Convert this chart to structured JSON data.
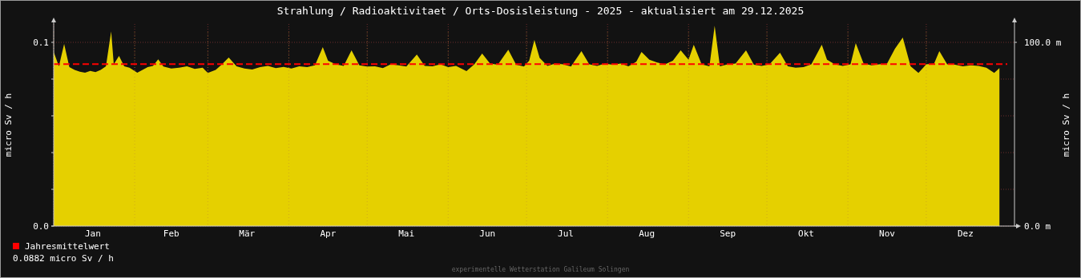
{
  "chart_data": {
    "type": "area",
    "title": "Strahlung / Radioaktivitaet / Orts-Dosisleistung - 2025 - aktualisiert am 29.12.2025",
    "ylabel": "micro Sv / h",
    "y2label": "micro Sv / h",
    "xlim": [
      "2025-01-01",
      "2026-01-01"
    ],
    "xticks": [
      {
        "value": "2025-01-01",
        "label": null
      },
      {
        "value": "2025-01-16",
        "label": "Jan"
      },
      {
        "value": "2025-02-01",
        "label": null
      },
      {
        "value": "2025-02-15",
        "label": "Feb"
      },
      {
        "value": "2025-03-01",
        "label": null
      },
      {
        "value": "2025-03-16",
        "label": "Mär"
      },
      {
        "value": "2025-04-01",
        "label": null
      },
      {
        "value": "2025-04-16",
        "label": "Apr"
      },
      {
        "value": "2025-05-01",
        "label": null
      },
      {
        "value": "2025-05-16",
        "label": "Mai"
      },
      {
        "value": "2025-06-01",
        "label": null
      },
      {
        "value": "2025-06-16",
        "label": "Jun"
      },
      {
        "value": "2025-07-01",
        "label": null
      },
      {
        "value": "2025-07-16",
        "label": "Jul"
      },
      {
        "value": "2025-08-01",
        "label": null
      },
      {
        "value": "2025-08-16",
        "label": "Aug"
      },
      {
        "value": "2025-09-01",
        "label": null
      },
      {
        "value": "2025-09-16",
        "label": "Sep"
      },
      {
        "value": "2025-10-01",
        "label": null
      },
      {
        "value": "2025-10-16",
        "label": "Okt"
      },
      {
        "value": "2025-11-01",
        "label": null
      },
      {
        "value": "2025-11-16",
        "label": "Nov"
      },
      {
        "value": "2025-12-01",
        "label": null
      },
      {
        "value": "2025-12-16",
        "label": "Dez"
      }
    ],
    "ylim": [
      0,
      0.11
    ],
    "yticks": [
      {
        "value": 0,
        "label": "0.0"
      },
      {
        "value": 0.02,
        "label": null
      },
      {
        "value": 0.04,
        "label": null
      },
      {
        "value": 0.06,
        "label": null
      },
      {
        "value": 0.08,
        "label": null
      },
      0.1
    ],
    "y2lim": [
      0,
      110
    ],
    "y2ticks": [
      {
        "value": 0,
        "label": "0.0 m"
      },
      {
        "value": 100,
        "label": "100.0 m"
      }
    ],
    "grid": true,
    "legend": "bottom left",
    "series": [
      {
        "color": "#e5d000",
        "x": [
          "2025-01-01",
          "2025-01-03",
          "2025-01-05",
          "2025-01-07",
          "2025-01-09",
          "2025-01-11",
          "2025-01-13",
          "2025-01-15",
          "2025-01-17",
          "2025-01-19",
          "2025-01-21",
          "2025-01-23",
          "2025-01-24",
          "2025-01-26",
          "2025-01-28",
          "2025-01-30",
          "2025-02-02",
          "2025-02-04",
          "2025-02-06",
          "2025-02-08",
          "2025-02-10",
          "2025-02-12",
          "2025-02-15",
          "2025-02-18",
          "2025-02-21",
          "2025-02-24",
          "2025-02-27",
          "2025-03-01",
          "2025-03-04",
          "2025-03-06",
          "2025-03-09",
          "2025-03-12",
          "2025-03-15",
          "2025-03-18",
          "2025-03-21",
          "2025-03-24",
          "2025-03-27",
          "2025-03-30",
          "2025-04-02",
          "2025-04-05",
          "2025-04-08",
          "2025-04-11",
          "2025-04-14",
          "2025-04-16",
          "2025-04-19",
          "2025-04-22",
          "2025-04-25",
          "2025-04-28",
          "2025-05-01",
          "2025-05-04",
          "2025-05-07",
          "2025-05-10",
          "2025-05-13",
          "2025-05-16",
          "2025-05-20",
          "2025-05-23",
          "2025-05-26",
          "2025-05-29",
          "2025-06-01",
          "2025-06-04",
          "2025-06-08",
          "2025-06-11",
          "2025-06-14",
          "2025-06-17",
          "2025-06-20",
          "2025-06-24",
          "2025-06-27",
          "2025-06-30",
          "2025-07-02",
          "2025-07-04",
          "2025-07-06",
          "2025-07-09",
          "2025-07-12",
          "2025-07-15",
          "2025-07-18",
          "2025-07-22",
          "2025-07-25",
          "2025-07-28",
          "2025-07-31",
          "2025-08-03",
          "2025-08-06",
          "2025-08-09",
          "2025-08-12",
          "2025-08-14",
          "2025-08-17",
          "2025-08-20",
          "2025-08-23",
          "2025-08-26",
          "2025-08-29",
          "2025-09-01",
          "2025-09-03",
          "2025-09-06",
          "2025-09-09",
          "2025-09-11",
          "2025-09-13",
          "2025-09-16",
          "2025-09-19",
          "2025-09-23",
          "2025-09-26",
          "2025-09-29",
          "2025-10-02",
          "2025-10-06",
          "2025-10-09",
          "2025-10-12",
          "2025-10-15",
          "2025-10-18",
          "2025-10-22",
          "2025-10-24",
          "2025-10-27",
          "2025-10-30",
          "2025-11-02",
          "2025-11-04",
          "2025-11-07",
          "2025-11-10",
          "2025-11-13",
          "2025-11-16",
          "2025-11-19",
          "2025-11-22",
          "2025-11-25",
          "2025-11-28",
          "2025-12-01",
          "2025-12-04",
          "2025-12-06",
          "2025-12-09",
          "2025-12-12",
          "2025-12-15",
          "2025-12-18",
          "2025-12-21",
          "2025-12-24",
          "2025-12-27",
          "2025-12-29"
        ],
        "values": [
          0.0948,
          0.087,
          0.0991,
          0.0865,
          0.085,
          0.084,
          0.0835,
          0.0845,
          0.0838,
          0.085,
          0.087,
          0.106,
          0.088,
          0.0926,
          0.087,
          0.0862,
          0.0835,
          0.085,
          0.0865,
          0.0872,
          0.0908,
          0.0868,
          0.0858,
          0.0862,
          0.087,
          0.0855,
          0.0862,
          0.0834,
          0.085,
          0.0875,
          0.0917,
          0.087,
          0.0858,
          0.0852,
          0.0865,
          0.0872,
          0.086,
          0.0866,
          0.0858,
          0.087,
          0.0865,
          0.0875,
          0.0974,
          0.09,
          0.088,
          0.0872,
          0.0956,
          0.0875,
          0.0868,
          0.087,
          0.086,
          0.088,
          0.0875,
          0.0868,
          0.0934,
          0.0872,
          0.087,
          0.088,
          0.0865,
          0.0872,
          0.0843,
          0.088,
          0.0939,
          0.0885,
          0.0878,
          0.096,
          0.0878,
          0.0868,
          0.09,
          0.1013,
          0.0915,
          0.0872,
          0.0885,
          0.088,
          0.0868,
          0.0952,
          0.088,
          0.0872,
          0.0885,
          0.0878,
          0.0885,
          0.087,
          0.0895,
          0.0948,
          0.0905,
          0.089,
          0.088,
          0.09,
          0.0956,
          0.0905,
          0.0987,
          0.088,
          0.087,
          0.109,
          0.087,
          0.088,
          0.0885,
          0.0956,
          0.0878,
          0.0872,
          0.088,
          0.0943,
          0.087,
          0.0862,
          0.0865,
          0.088,
          0.0987,
          0.0905,
          0.088,
          0.0872,
          0.088,
          0.0996,
          0.0885,
          0.0875,
          0.088,
          0.0885,
          0.0965,
          0.1026,
          0.087,
          0.0834,
          0.088,
          0.0885,
          0.0952,
          0.088,
          0.0878,
          0.087,
          0.0875,
          0.0872,
          0.0862,
          0.0834,
          0.086
        ]
      }
    ],
    "ref_lines": [
      {
        "axis": "y",
        "value": 0.0882,
        "label": "Jahresmittelwert",
        "color": "#ff0000",
        "line_style": "dashed"
      }
    ],
    "annotations": [
      "0.0882 micro Sv / h",
      "experimentelle Wetterstation Galileum Solingen"
    ]
  }
}
